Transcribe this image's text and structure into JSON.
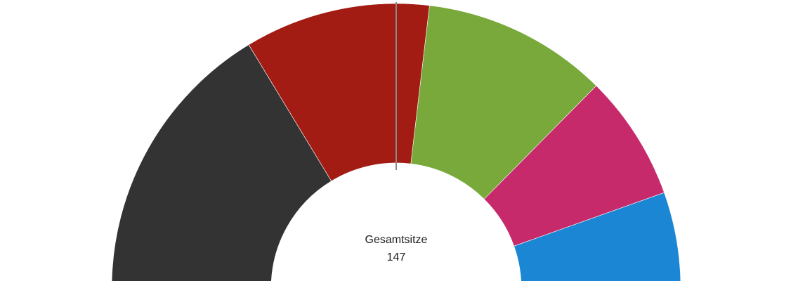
{
  "chart_data": {
    "type": "semi-donut",
    "values": [
      48,
      31,
      31,
      21,
      16
    ],
    "colors": [
      "#333333",
      "#a31c14",
      "#78a93a",
      "#c62a6b",
      "#1b87d4"
    ],
    "center_label": "Gesamtsitze",
    "center_value": "147"
  }
}
